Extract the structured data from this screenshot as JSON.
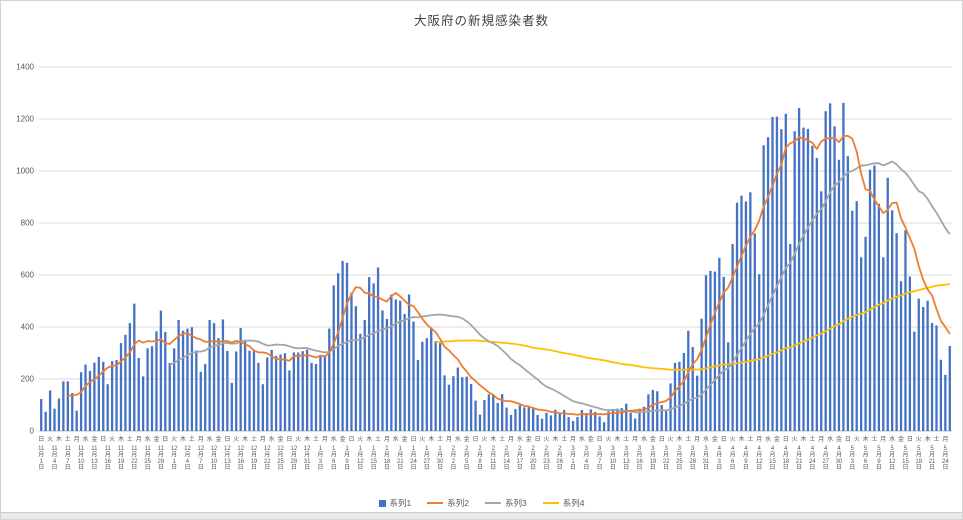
{
  "chart_data": {
    "type": "combo_bar_line",
    "title": "大阪府の新規感染者数",
    "ylim": [
      0,
      1400
    ],
    "yticks": [
      0,
      200,
      400,
      600,
      800,
      1000,
      1200,
      1400
    ],
    "grid": true,
    "legend_position": "bottom",
    "n_points": 206,
    "x_weekday_cycle": [
      "日",
      "火",
      "木",
      "土",
      "月",
      "水",
      "金"
    ],
    "x_weekday_step": 2,
    "x_date_label_step": 3,
    "x_date_labels": [
      "11月1日",
      "11月4日",
      "11月7日",
      "11月10日",
      "11月13日",
      "11月16日",
      "11月19日",
      "11月22日",
      "11月25日",
      "11月28日",
      "12月1日",
      "12月4日",
      "12月7日",
      "12月10日",
      "12月13日",
      "12月16日",
      "12月19日",
      "12月22日",
      "12月25日",
      "12月28日",
      "12月31日",
      "1月3日",
      "1月6日",
      "1月9日",
      "1月12日",
      "1月15日",
      "1月18日",
      "1月21日",
      "1月24日",
      "1月27日",
      "1月30日",
      "2月2日",
      "2月5日",
      "2月8日",
      "2月11日",
      "2月14日",
      "2月17日",
      "2月20日",
      "2月23日",
      "2月26日",
      "3月1日",
      "3月4日",
      "3月7日",
      "3月10日",
      "3月13日",
      "3月16日",
      "3月19日",
      "3月22日",
      "3月25日",
      "3月28日",
      "3月31日",
      "4月3日",
      "4月6日",
      "4月9日",
      "4月12日",
      "4月15日",
      "4月18日",
      "4月21日",
      "4月24日",
      "4月27日",
      "4月30日",
      "5月3日",
      "5月6日",
      "5月9日",
      "5月12日",
      "5月15日",
      "5月18日",
      "5月21日",
      "5月24日"
    ],
    "values": [
      123,
      74,
      156,
      86,
      125,
      191,
      191,
      146,
      78,
      226,
      256,
      231,
      263,
      285,
      266,
      180,
      269,
      273,
      338,
      370,
      415,
      490,
      281,
      210,
      318,
      326,
      383,
      463,
      381,
      262,
      318,
      427,
      386,
      394,
      399,
      310,
      228,
      258,
      427,
      415,
      357,
      429,
      308,
      185,
      306,
      396,
      351,
      309,
      311,
      262,
      180,
      283,
      312,
      289,
      294,
      299,
      233,
      302,
      302,
      307,
      313,
      262,
      258,
      286,
      286,
      394,
      560,
      607,
      654,
      647,
      532,
      480,
      374,
      427,
      592,
      568,
      629,
      464,
      431,
      525,
      506,
      501,
      450,
      525,
      421,
      273,
      343,
      357,
      397,
      346,
      338,
      214,
      178,
      211,
      244,
      207,
      209,
      181,
      117,
      63,
      119,
      141,
      141,
      108,
      142,
      90,
      62,
      84,
      99,
      91,
      91,
      92,
      62,
      47,
      70,
      60,
      82,
      69,
      81,
      54,
      38,
      54,
      81,
      69,
      83,
      73,
      56,
      34,
      76,
      84,
      86,
      88,
      105,
      70,
      48,
      86,
      93,
      141,
      158,
      153,
      100,
      79,
      183,
      262,
      266,
      300,
      386,
      323,
      213,
      432,
      599,
      616,
      613,
      666,
      593,
      341,
      719,
      878,
      905,
      883,
      918,
      760,
      603,
      1099,
      1130,
      1208,
      1209,
      1161,
      1220,
      719,
      1153,
      1242,
      1167,
      1162,
      1097,
      1050,
      922,
      1230,
      1260,
      1172,
      1043,
      1262,
      1057,
      847,
      884,
      668,
      747,
      1005,
      1021,
      874,
      668,
      974,
      849,
      761,
      576,
      772,
      594,
      382,
      509,
      477,
      501,
      415,
      406,
      274,
      216,
      327
    ],
    "series": [
      {
        "name": "系列1",
        "type": "bar",
        "color": "#4472C4"
      },
      {
        "name": "系列2",
        "type": "line",
        "color": "#ED7D31",
        "ma_window": 7
      },
      {
        "name": "系列3",
        "type": "line",
        "color": "#A5A5A5",
        "ma_window": 30
      },
      {
        "name": "系列4",
        "type": "line",
        "color": "#FFC000",
        "ma_window": 90
      }
    ],
    "colors": {
      "gridline": "#D9D9D9",
      "axis_line": "#BFBFBF",
      "axis_text": "#595959",
      "title_text": "#404040"
    }
  }
}
